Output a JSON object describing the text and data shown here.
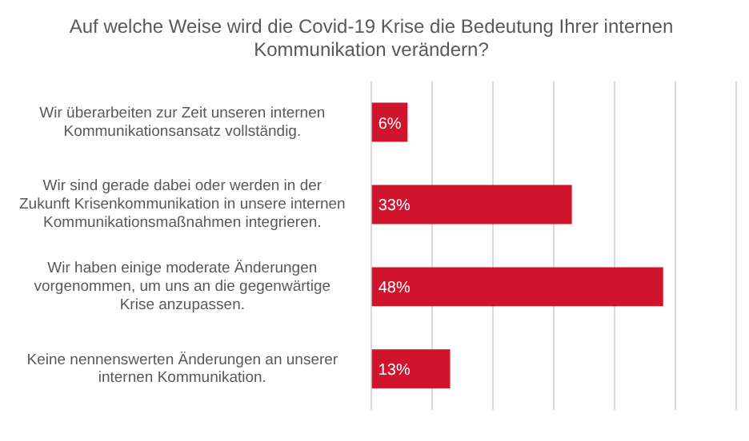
{
  "chart_data": {
    "type": "bar",
    "orientation": "horizontal",
    "title": "Auf welche Weise wird die Covid-19 Krise die Bedeutung Ihrer internen Kommunikation verändern?",
    "categories": [
      "Wir überarbeiten zur Zeit unseren internen Kommunikationsansatz vollständig.",
      "Wir sind gerade dabei oder werden in der Zukunft Krisenkommunikation in unsere internen Kommunikationsmaßnahmen integrieren.",
      "Wir haben einige moderate Änderungen vorgenommen, um uns an die gegenwärtige Krise anzupassen.",
      "Keine nennenswerten Änderungen an unserer internen Kommunikation."
    ],
    "values": [
      6,
      33,
      48,
      13
    ],
    "color": "#d0142c",
    "value_labels": [
      "6%",
      "33%",
      "48%",
      "13%"
    ],
    "xlim": [
      0,
      60
    ],
    "xticks": [
      {
        "value": 0,
        "label": null
      },
      {
        "value": 10,
        "label": null
      },
      {
        "value": 20,
        "label": null
      },
      {
        "value": 30,
        "label": null
      },
      {
        "value": 40,
        "label": null
      },
      {
        "value": 50,
        "label": null
      },
      {
        "value": 60,
        "label": null
      }
    ],
    "grid": "x",
    "tick_labels": "y",
    "legend": false
  }
}
